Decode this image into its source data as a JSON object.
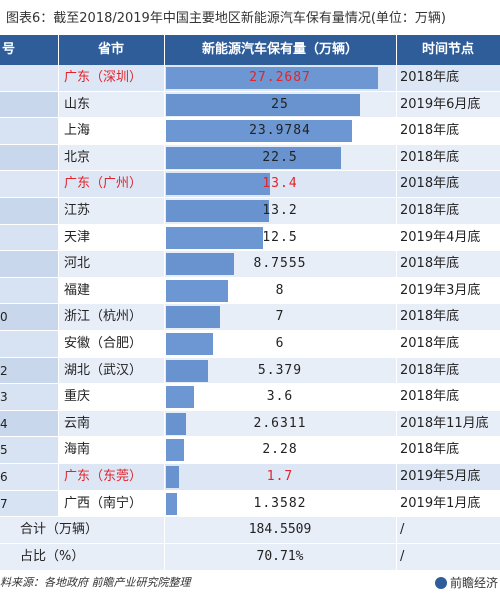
{
  "title": "图表6：截至2018/2019年中国主要地区新能源汽车保有量情况(单位：万辆)",
  "headers": {
    "index": "号",
    "province": "省市",
    "value": "新能源汽车保有量（万辆）",
    "time": "时间节点"
  },
  "chart_data": {
    "type": "bar",
    "title": "图表6：截至2018/2019年中国主要地区新能源汽车保有量情况(单位：万辆)",
    "ylabel": "新能源汽车保有量（万辆）",
    "xlim": [
      0,
      27.2687
    ],
    "rows": [
      {
        "index": "",
        "region": "广东（深圳）",
        "value": 27.2687,
        "value_label": "27.2687",
        "time": "2018年底",
        "highlight": true
      },
      {
        "index": "",
        "region": "山东",
        "value": 25,
        "value_label": "25",
        "time": "2019年6月底",
        "highlight": false
      },
      {
        "index": "",
        "region": "上海",
        "value": 23.9784,
        "value_label": "23.9784",
        "time": "2018年底",
        "highlight": false
      },
      {
        "index": "",
        "region": "北京",
        "value": 22.5,
        "value_label": "22.5",
        "time": "2018年底",
        "highlight": false
      },
      {
        "index": "",
        "region": "广东（广州）",
        "value": 13.4,
        "value_label": "13.4",
        "time": "2018年底",
        "highlight": true
      },
      {
        "index": "",
        "region": "江苏",
        "value": 13.2,
        "value_label": "13.2",
        "time": "2018年底",
        "highlight": false
      },
      {
        "index": "",
        "region": "天津",
        "value": 12.5,
        "value_label": "12.5",
        "time": "2019年4月底",
        "highlight": false
      },
      {
        "index": "",
        "region": "河北",
        "value": 8.7555,
        "value_label": "8.7555",
        "time": "2018年底",
        "highlight": false
      },
      {
        "index": "",
        "region": "福建",
        "value": 8,
        "value_label": "8",
        "time": "2019年3月底",
        "highlight": false
      },
      {
        "index": "0",
        "region": "浙江（杭州）",
        "value": 7,
        "value_label": "7",
        "time": "2018年底",
        "highlight": false
      },
      {
        "index": "",
        "region": "安徽（合肥）",
        "value": 6,
        "value_label": "6",
        "time": "2018年底",
        "highlight": false
      },
      {
        "index": "2",
        "region": "湖北（武汉）",
        "value": 5.379,
        "value_label": "5.379",
        "time": "2018年底",
        "highlight": false
      },
      {
        "index": "3",
        "region": "重庆",
        "value": 3.6,
        "value_label": "3.6",
        "time": "2018年底",
        "highlight": false
      },
      {
        "index": "4",
        "region": "云南",
        "value": 2.6311,
        "value_label": "2.6311",
        "time": "2018年11月底",
        "highlight": false
      },
      {
        "index": "5",
        "region": "海南",
        "value": 2.28,
        "value_label": "2.28",
        "time": "2018年底",
        "highlight": false
      },
      {
        "index": "6",
        "region": "广东（东莞）",
        "value": 1.7,
        "value_label": "1.7",
        "time": "2019年5月底",
        "highlight": true
      },
      {
        "index": "7",
        "region": "广西（南宁）",
        "value": 1.3582,
        "value_label": "1.3582",
        "time": "2019年1月底",
        "highlight": false
      }
    ]
  },
  "summary": [
    {
      "label": "合计（万辆）",
      "value": "184.5509",
      "time": "/"
    },
    {
      "label": "占比（%）",
      "value": "70.71%",
      "time": "/"
    }
  ],
  "source": "料来源：各地政府 前瞻产业研究院整理",
  "brand": "前瞻经济",
  "colors": {
    "header": "#2f5d99",
    "bar": "#6d97d2",
    "highlight_text": "#e0242c"
  }
}
